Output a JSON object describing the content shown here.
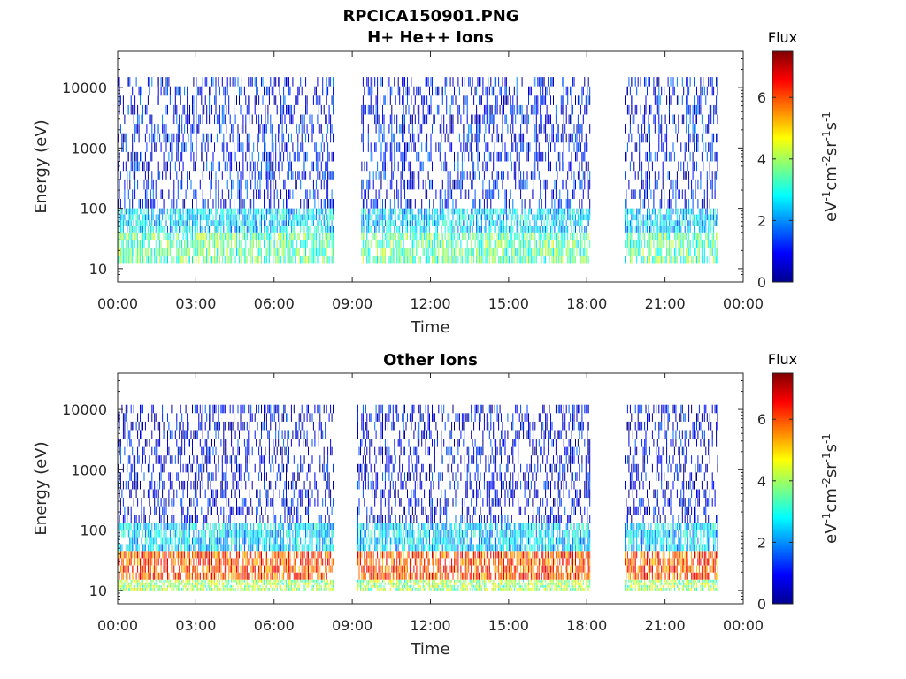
{
  "figure_title": "RPCICA150901.PNG",
  "chart_data": [
    {
      "type": "heatmap",
      "title": "H+ He++ Ions",
      "xlabel": "Time",
      "ylabel": "Energy (eV)",
      "y_scale": "log",
      "ylim": [
        6,
        40000
      ],
      "xlim": [
        "00:00",
        "24:00"
      ],
      "x_ticks": [
        "00:00",
        "03:00",
        "06:00",
        "09:00",
        "12:00",
        "15:00",
        "18:00",
        "21:00",
        "00:00"
      ],
      "y_ticks": [
        "10",
        "100",
        "1000",
        "10000"
      ],
      "colorbar": {
        "title": "Flux",
        "label_parts": [
          "eV",
          "-1",
          "cm",
          "-2",
          "sr",
          "-1",
          "s",
          "-1"
        ],
        "range": [
          0,
          7.5
        ],
        "ticks": [
          "0",
          "2",
          "4",
          "6"
        ],
        "colormap": "jet"
      },
      "data_gaps_hours": [
        [
          8.25,
          9.3
        ],
        [
          18.15,
          19.45
        ],
        [
          23.05,
          24.0
        ]
      ],
      "bands": [
        {
          "energy_range_eV": [
            12,
            40
          ],
          "typical_flux": 3.5
        },
        {
          "energy_range_eV": [
            40,
            100
          ],
          "typical_flux": 2.5
        },
        {
          "energy_range_eV": [
            100,
            15000
          ],
          "typical_flux": 1.0
        }
      ]
    },
    {
      "type": "heatmap",
      "title": "Other Ions",
      "xlabel": "Time",
      "ylabel": "Energy (eV)",
      "y_scale": "log",
      "ylim": [
        6,
        40000
      ],
      "xlim": [
        "00:00",
        "24:00"
      ],
      "x_ticks": [
        "00:00",
        "03:00",
        "06:00",
        "09:00",
        "12:00",
        "15:00",
        "18:00",
        "21:00",
        "00:00"
      ],
      "y_ticks": [
        "10",
        "100",
        "1000",
        "10000"
      ],
      "colorbar": {
        "title": "Flux",
        "label_parts": [
          "eV",
          "-1",
          "cm",
          "-2",
          "sr",
          "-1",
          "s",
          "-1"
        ],
        "range": [
          0,
          7.5
        ],
        "ticks": [
          "0",
          "2",
          "4",
          "6"
        ],
        "colormap": "jet"
      },
      "data_gaps_hours": [
        [
          8.25,
          9.15
        ],
        [
          18.15,
          19.45
        ],
        [
          23.05,
          24.0
        ]
      ],
      "bands": [
        {
          "energy_range_eV": [
            15,
            45
          ],
          "typical_flux": 6.0
        },
        {
          "energy_range_eV": [
            10,
            15
          ],
          "typical_flux": 4.0
        },
        {
          "energy_range_eV": [
            45,
            130
          ],
          "typical_flux": 2.5
        },
        {
          "energy_range_eV": [
            130,
            12000
          ],
          "typical_flux": 0.8
        }
      ]
    }
  ]
}
